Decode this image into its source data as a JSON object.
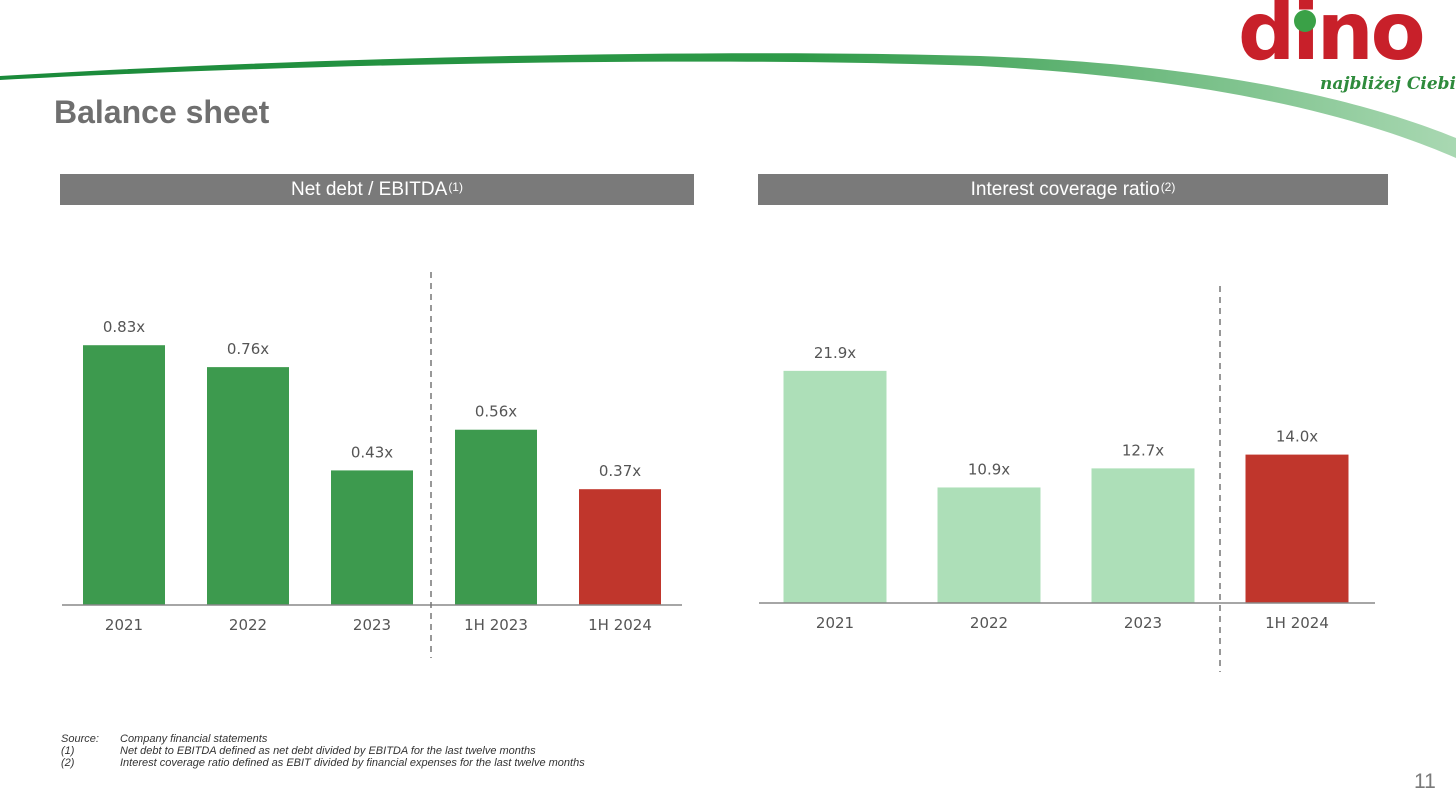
{
  "page": {
    "title": "Balance sheet",
    "number": "11",
    "logo": {
      "word": "dino",
      "tagline": "najbliżej Ciebie",
      "color": "#c8202a",
      "dot_color": "#3aa147"
    }
  },
  "charts": [
    {
      "title": "Net debt / EBITDA",
      "note_ref": "(1)"
    },
    {
      "title": "Interest coverage ratio",
      "note_ref": "(2)"
    }
  ],
  "chart_data": [
    {
      "type": "bar",
      "title": "Net debt / EBITDA(1)",
      "categories": [
        "2021",
        "2022",
        "2023",
        "1H 2023",
        "1H 2024"
      ],
      "values": [
        0.83,
        0.76,
        0.43,
        0.56,
        0.37
      ],
      "labels": [
        "0.83x",
        "0.76x",
        "0.43x",
        "0.56x",
        "0.37x"
      ],
      "colors": [
        "#3d9a4e",
        "#3d9a4e",
        "#3d9a4e",
        "#3d9a4e",
        "#c0362c"
      ],
      "divider_after": 3,
      "grid": false,
      "legend": "none"
    },
    {
      "type": "bar",
      "title": "Interest coverage ratio(2)",
      "categories": [
        "2021",
        "2022",
        "2023",
        "1H 2024"
      ],
      "values": [
        21.9,
        10.9,
        12.7,
        14.0
      ],
      "labels": [
        "21.9x",
        "10.9x",
        "12.7x",
        "14.0x"
      ],
      "colors": [
        "#addfb8",
        "#addfb8",
        "#addfb8",
        "#c0362c"
      ],
      "divider_after": 3,
      "grid": false,
      "legend": "none"
    }
  ],
  "footnotes": [
    {
      "key": "Source:",
      "text": "Company financial statements"
    },
    {
      "key": "(1)",
      "text": "Net debt to EBITDA defined as net debt divided by EBITDA for the last twelve months"
    },
    {
      "key": "(2)",
      "text": "Interest coverage ratio defined as EBIT divided by financial expenses for the last twelve months"
    }
  ]
}
